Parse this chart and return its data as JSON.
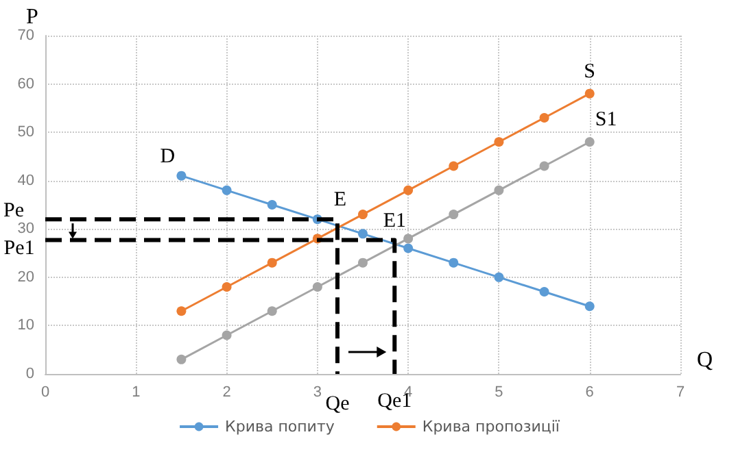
{
  "chart_data": {
    "type": "line",
    "xlabel": "Q",
    "ylabel": "P",
    "xlim": [
      0,
      7
    ],
    "xticks": [
      0,
      1,
      2,
      3,
      4,
      5,
      6,
      7
    ],
    "ylim": [
      0,
      70
    ],
    "yticks": [
      0,
      10,
      20,
      30,
      40,
      50,
      60,
      70
    ],
    "grid": true,
    "legend": "bottom",
    "marker": "circle",
    "line_style": "solid",
    "series": [
      {
        "name": "Крива попиту",
        "color": "#5b9bd5",
        "x": [
          1.5,
          2,
          2.5,
          3,
          3.5,
          4,
          4.5,
          5,
          5.5,
          6
        ],
        "values": [
          41,
          38,
          35,
          32,
          29,
          26,
          23,
          20,
          17,
          14
        ]
      },
      {
        "name": "Крива пропозиції",
        "color": "#ed7d31",
        "x": [
          1.5,
          2,
          2.5,
          3,
          3.5,
          4,
          4.5,
          5,
          5.5,
          6
        ],
        "values": [
          13,
          18,
          23,
          28,
          33,
          38,
          43,
          48,
          53,
          58
        ]
      },
      {
        "color": "#a5a5a5",
        "x": [
          1.5,
          2,
          2.5,
          3,
          3.5,
          4,
          4.5,
          5,
          5.5,
          6
        ],
        "values": [
          3,
          8,
          13,
          18,
          23,
          28,
          33,
          38,
          43,
          48
        ]
      },
      {
        "color": "#000000",
        "marker": "none",
        "line_style": "dashed",
        "x": [
          0,
          3.22,
          3.22
        ],
        "values": [
          32,
          32,
          0
        ]
      },
      {
        "color": "#000000",
        "marker": "none",
        "line_style": "dashed",
        "x": [
          0,
          3.85,
          3.85
        ],
        "values": [
          27.7,
          27.7,
          0
        ]
      }
    ],
    "annotations": [
      "D",
      "S",
      "S1",
      "E",
      "E1",
      "Pe",
      "Pe1",
      "Qe",
      "Qe1"
    ]
  }
}
